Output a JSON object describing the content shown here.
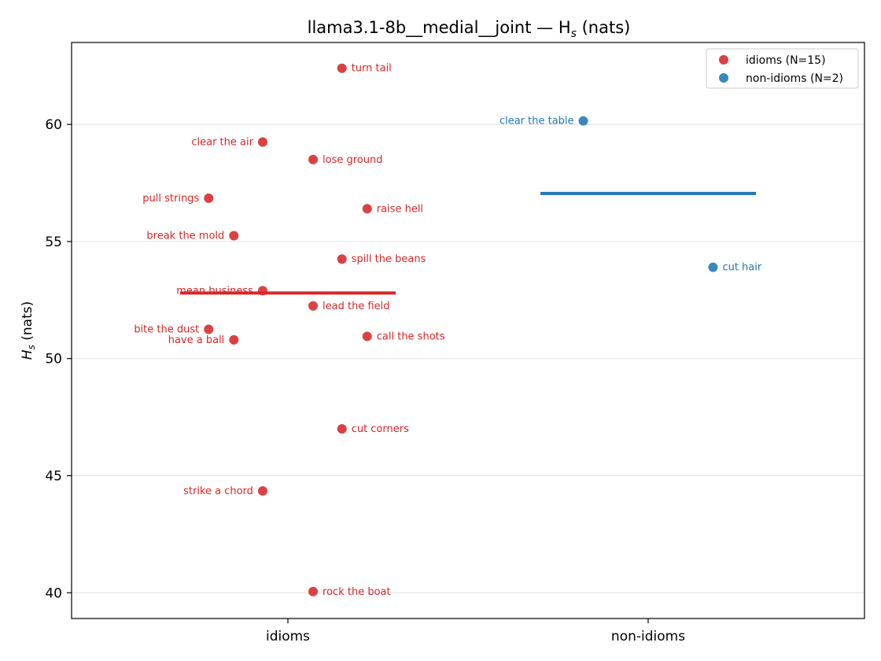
{
  "chart_data": {
    "type": "scatter",
    "title": "llama3.1-8b__medial__joint — H",
    "title_subscript": "s",
    "title_suffix": " (nats)",
    "ylabel": "H",
    "ylabel_subscript": "s",
    "ylabel_suffix": " (nats)",
    "xlabel": "",
    "categories": [
      "idioms",
      "non-idioms"
    ],
    "ylim": [
      38.9,
      63.5
    ],
    "yticks": [
      40,
      45,
      50,
      55,
      60
    ],
    "grid": "horizontal",
    "legend_position": "top-right",
    "series": [
      {
        "name": "idioms (N=15)",
        "category": "idioms",
        "color": "#d62728",
        "mean": 52.8,
        "points": [
          {
            "label": "turn tail",
            "y": 62.4,
            "jitter": 0.15,
            "label_side": "right"
          },
          {
            "label": "clear the air",
            "y": 59.25,
            "jitter": -0.07,
            "label_side": "left"
          },
          {
            "label": "lose ground",
            "y": 58.5,
            "jitter": 0.07,
            "label_side": "right"
          },
          {
            "label": "pull strings",
            "y": 56.85,
            "jitter": -0.22,
            "label_side": "left"
          },
          {
            "label": "raise hell",
            "y": 56.4,
            "jitter": 0.22,
            "label_side": "right"
          },
          {
            "label": "break the mold",
            "y": 55.25,
            "jitter": -0.15,
            "label_side": "left"
          },
          {
            "label": "spill the beans",
            "y": 54.25,
            "jitter": 0.15,
            "label_side": "right"
          },
          {
            "label": "mean business",
            "y": 52.9,
            "jitter": -0.07,
            "label_side": "left"
          },
          {
            "label": "lead the field",
            "y": 52.25,
            "jitter": 0.07,
            "label_side": "right"
          },
          {
            "label": "bite the dust",
            "y": 51.25,
            "jitter": -0.22,
            "label_side": "left"
          },
          {
            "label": "have a ball",
            "y": 50.8,
            "jitter": -0.15,
            "label_side": "left"
          },
          {
            "label": "call the shots",
            "y": 50.95,
            "jitter": 0.22,
            "label_side": "right"
          },
          {
            "label": "cut corners",
            "y": 47.0,
            "jitter": 0.15,
            "label_side": "right"
          },
          {
            "label": "strike a chord",
            "y": 44.35,
            "jitter": -0.07,
            "label_side": "left"
          },
          {
            "label": "rock the boat",
            "y": 40.05,
            "jitter": 0.07,
            "label_side": "right"
          }
        ]
      },
      {
        "name": "non-idioms (N=2)",
        "category": "non-idioms",
        "color": "#1f77b4",
        "mean": 57.05,
        "points": [
          {
            "label": "clear the table",
            "y": 60.15,
            "jitter": -0.18,
            "label_side": "left"
          },
          {
            "label": "cut hair",
            "y": 53.9,
            "jitter": 0.18,
            "label_side": "right"
          }
        ]
      }
    ]
  }
}
